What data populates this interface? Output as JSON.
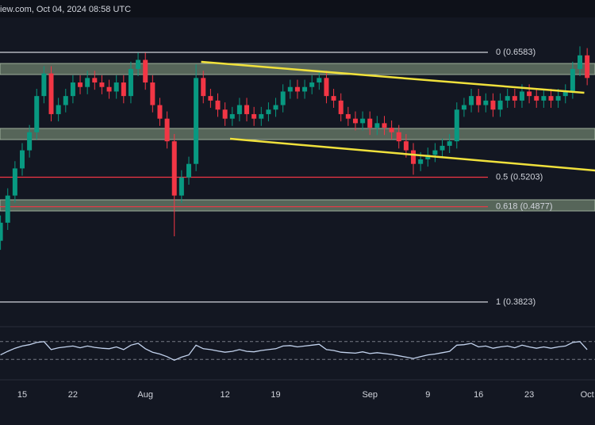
{
  "header": {
    "text": "iew.com, Oct 04, 2024 08:58 UTC"
  },
  "chart_data": {
    "type": "candlestick",
    "categories": [
      null,
      null,
      null,
      "15",
      null,
      null,
      null,
      null,
      null,
      null,
      "22",
      null,
      null,
      null,
      null,
      null,
      null,
      null,
      null,
      null,
      "Aug",
      null,
      null,
      null,
      null,
      null,
      null,
      null,
      null,
      null,
      null,
      "12",
      null,
      null,
      null,
      null,
      null,
      null,
      "19",
      null,
      null,
      null,
      null,
      null,
      null,
      null,
      null,
      null,
      null,
      null,
      null,
      "Sep",
      null,
      null,
      null,
      null,
      null,
      null,
      null,
      "9",
      null,
      null,
      null,
      null,
      null,
      null,
      "16",
      null,
      null,
      null,
      null,
      null,
      null,
      "23",
      null,
      null,
      null,
      null,
      null,
      null,
      null,
      "Oct"
    ],
    "open": [
      0.45,
      0.47,
      0.5,
      0.53,
      0.55,
      0.57,
      0.61,
      0.635,
      0.59,
      0.6,
      0.61,
      0.625,
      0.62,
      0.63,
      0.625,
      0.62,
      0.615,
      0.625,
      0.61,
      0.64,
      0.65,
      0.625,
      0.6,
      0.585,
      0.56,
      0.5,
      0.52,
      0.535,
      0.63,
      0.61,
      0.605,
      0.595,
      0.585,
      0.59,
      0.6,
      0.59,
      0.585,
      0.59,
      0.595,
      0.6,
      0.615,
      0.62,
      0.615,
      0.62,
      0.625,
      0.63,
      0.61,
      0.605,
      0.59,
      0.585,
      0.58,
      0.585,
      0.575,
      0.58,
      0.575,
      0.57,
      0.56,
      0.55,
      0.535,
      0.54,
      0.545,
      0.55,
      0.555,
      0.56,
      0.595,
      0.6,
      0.61,
      0.6,
      0.605,
      0.595,
      0.605,
      0.61,
      0.605,
      0.615,
      0.61,
      0.605,
      0.61,
      0.605,
      0.61,
      0.615,
      0.64,
      0.655
    ],
    "high": [
      0.478,
      0.508,
      0.538,
      0.558,
      0.578,
      0.618,
      0.643,
      0.643,
      0.608,
      0.618,
      0.633,
      0.633,
      0.638,
      0.638,
      0.633,
      0.628,
      0.633,
      0.633,
      0.648,
      0.658,
      0.658,
      0.633,
      0.608,
      0.593,
      0.568,
      0.528,
      0.543,
      0.645,
      0.638,
      0.618,
      0.613,
      0.603,
      0.598,
      0.608,
      0.608,
      0.598,
      0.598,
      0.603,
      0.608,
      0.623,
      0.628,
      0.628,
      0.628,
      0.633,
      0.638,
      0.638,
      0.618,
      0.613,
      0.598,
      0.593,
      0.593,
      0.593,
      0.588,
      0.588,
      0.583,
      0.578,
      0.568,
      0.558,
      0.548,
      0.553,
      0.558,
      0.563,
      0.568,
      0.603,
      0.608,
      0.618,
      0.618,
      0.613,
      0.613,
      0.613,
      0.618,
      0.618,
      0.623,
      0.623,
      0.618,
      0.618,
      0.618,
      0.618,
      0.623,
      0.648,
      0.665,
      0.663
    ],
    "low": [
      0.44,
      0.462,
      0.492,
      0.522,
      0.542,
      0.562,
      0.602,
      0.582,
      0.582,
      0.592,
      0.602,
      0.612,
      0.612,
      0.617,
      0.612,
      0.607,
      0.607,
      0.602,
      0.602,
      0.632,
      0.617,
      0.592,
      0.577,
      0.552,
      0.455,
      0.492,
      0.512,
      0.527,
      0.602,
      0.597,
      0.587,
      0.577,
      0.577,
      0.582,
      0.582,
      0.577,
      0.577,
      0.582,
      0.587,
      0.592,
      0.607,
      0.607,
      0.607,
      0.612,
      0.617,
      0.602,
      0.597,
      0.582,
      0.577,
      0.572,
      0.572,
      0.567,
      0.567,
      0.567,
      0.562,
      0.552,
      0.542,
      0.523,
      0.527,
      0.532,
      0.537,
      0.542,
      0.547,
      0.552,
      0.587,
      0.592,
      0.592,
      0.592,
      0.587,
      0.587,
      0.597,
      0.597,
      0.597,
      0.602,
      0.597,
      0.597,
      0.597,
      0.597,
      0.602,
      0.607,
      0.632,
      0.622
    ],
    "close": [
      0.47,
      0.5,
      0.53,
      0.55,
      0.57,
      0.61,
      0.635,
      0.59,
      0.6,
      0.61,
      0.625,
      0.62,
      0.63,
      0.625,
      0.62,
      0.615,
      0.625,
      0.61,
      0.64,
      0.65,
      0.625,
      0.6,
      0.585,
      0.56,
      0.5,
      0.52,
      0.535,
      0.63,
      0.61,
      0.605,
      0.595,
      0.585,
      0.59,
      0.6,
      0.59,
      0.585,
      0.59,
      0.595,
      0.6,
      0.615,
      0.62,
      0.615,
      0.62,
      0.625,
      0.63,
      0.61,
      0.605,
      0.59,
      0.585,
      0.58,
      0.585,
      0.575,
      0.58,
      0.575,
      0.57,
      0.56,
      0.55,
      0.535,
      0.54,
      0.545,
      0.55,
      0.555,
      0.56,
      0.595,
      0.6,
      0.61,
      0.6,
      0.605,
      0.595,
      0.605,
      0.61,
      0.605,
      0.615,
      0.61,
      0.605,
      0.61,
      0.605,
      0.61,
      0.615,
      0.64,
      0.655,
      0.63
    ],
    "up_color": "#089981",
    "down_color": "#f23645",
    "ylim": [
      0.3568,
      0.6969
    ],
    "fib_levels": [
      {
        "value": 0.6583,
        "label": "0 (0.6583)",
        "color": "#d1d4dc"
      },
      {
        "value": 0.5203,
        "label": "0.5 (0.5203)",
        "color": "#f23645"
      },
      {
        "value": 0.4877,
        "label": "0.618 (0.4877)",
        "color": "#f23645"
      },
      {
        "value": 0.3823,
        "label": "1 (0.3823)",
        "color": "#d1d4dc"
      }
    ],
    "zones": [
      [
        0.6338,
        0.646
      ],
      [
        0.5619,
        0.5742
      ],
      [
        0.483,
        0.4953
      ]
    ],
    "zone_color": "#6e806c",
    "trendlines": [
      [
        [
          27.7,
          0.6478
        ],
        [
          80.6,
          0.6136
        ]
      ],
      [
        [
          31.7,
          0.5628
        ],
        [
          82.1,
          0.5277
        ]
      ]
    ],
    "trendline_color": "#f0e13c",
    "rsi": {
      "values": [
        40,
        48,
        55,
        60,
        63,
        68,
        70,
        52,
        56,
        58,
        60,
        56,
        60,
        57,
        55,
        54,
        58,
        52,
        62,
        66,
        54,
        46,
        42,
        36,
        28,
        35,
        40,
        62,
        54,
        52,
        49,
        46,
        48,
        52,
        48,
        47,
        50,
        52,
        54,
        60,
        61,
        58,
        60,
        62,
        64,
        52,
        50,
        46,
        45,
        44,
        47,
        43,
        45,
        43,
        41,
        38,
        35,
        32,
        36,
        40,
        42,
        45,
        48,
        62,
        63,
        66,
        58,
        60,
        55,
        58,
        60,
        56,
        62,
        58,
        55,
        58,
        55,
        58,
        60,
        68,
        70,
        52
      ],
      "ylim": [
        0,
        100
      ],
      "levels": [
        30,
        70
      ],
      "color": "#c3d3ee"
    }
  }
}
